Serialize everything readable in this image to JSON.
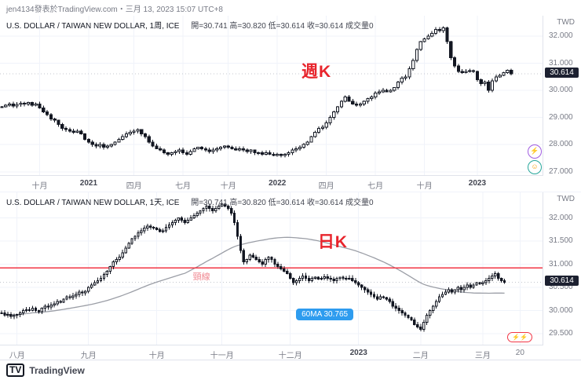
{
  "topbar": {
    "attribution": "jen4134發表於TradingView.com・三月 13, 2023 15:07 UTC+8"
  },
  "footer": {
    "logo_glyph": "TV",
    "brand": "TradingView"
  },
  "chart_data": [
    {
      "id": "weekly",
      "type": "candlestick",
      "title": "U.S. DOLLAR / TAIWAN NEW DOLLAR, 1周, ICE",
      "ohlc_summary": "開=30.741  高=30.820  低=30.614  收=30.614  成交量0",
      "annotation": "週K",
      "annotation_pos": {
        "x_frac": 0.555,
        "y_frac": 0.27
      },
      "currency": "TWD",
      "last_price": "30.614",
      "y_ticks": [
        "32.000",
        "31.000",
        "30.000",
        "29.000",
        "28.000",
        "27.000"
      ],
      "y_domain": [
        26.85,
        32.75
      ],
      "right_margin": 8,
      "wick": 0.07,
      "x_labels": [
        {
          "label": "十月",
          "i": 10
        },
        {
          "label": "2021",
          "i": 23,
          "b": true
        },
        {
          "label": "四月",
          "i": 35
        },
        {
          "label": "七月",
          "i": 48
        },
        {
          "label": "十月",
          "i": 60
        },
        {
          "label": "2022",
          "i": 73,
          "b": true
        },
        {
          "label": "四月",
          "i": 86
        },
        {
          "label": "七月",
          "i": 99
        },
        {
          "label": "十月",
          "i": 112
        },
        {
          "label": "2023",
          "i": 126,
          "b": true
        }
      ],
      "closes": [
        29.4,
        29.45,
        29.5,
        29.42,
        29.48,
        29.52,
        29.5,
        29.55,
        29.45,
        29.5,
        29.35,
        29.2,
        29.1,
        28.95,
        28.9,
        28.75,
        28.6,
        28.55,
        28.5,
        28.45,
        28.5,
        28.4,
        28.2,
        28.1,
        28.0,
        27.95,
        28.0,
        27.9,
        27.95,
        28.0,
        28.1,
        28.2,
        28.3,
        28.4,
        28.45,
        28.5,
        28.55,
        28.4,
        28.3,
        28.1,
        27.95,
        27.85,
        27.8,
        27.7,
        27.65,
        27.7,
        27.75,
        27.8,
        27.7,
        27.65,
        27.75,
        27.85,
        27.9,
        27.85,
        27.8,
        27.75,
        27.8,
        27.85,
        27.9,
        27.95,
        27.9,
        27.85,
        27.8,
        27.85,
        27.8,
        27.75,
        27.8,
        27.7,
        27.7,
        27.65,
        27.7,
        27.65,
        27.6,
        27.65,
        27.6,
        27.65,
        27.7,
        27.8,
        27.85,
        27.9,
        28.0,
        28.1,
        28.3,
        28.45,
        28.6,
        28.65,
        28.8,
        29.0,
        29.2,
        29.4,
        29.6,
        29.75,
        29.6,
        29.5,
        29.45,
        29.5,
        29.6,
        29.7,
        29.75,
        29.9,
        29.95,
        30.0,
        29.95,
        30.0,
        30.1,
        30.3,
        30.45,
        30.5,
        30.8,
        31.1,
        31.5,
        31.8,
        31.9,
        32.0,
        32.1,
        32.25,
        32.2,
        32.3,
        31.8,
        31.2,
        30.9,
        30.7,
        30.65,
        30.7,
        30.72,
        30.7,
        30.4,
        30.25,
        30.3,
        30.0,
        30.35,
        30.5,
        30.55,
        30.65,
        30.74,
        30.614
      ],
      "reactions": [
        "⚡",
        "☺"
      ]
    },
    {
      "id": "daily",
      "type": "candlestick",
      "title": "U.S. DOLLAR / TAIWAN NEW DOLLAR, 1天, ICE",
      "ohlc_summary": "開=30.741  高=30.820  低=30.614  收=30.614  成交量0",
      "annotation": "日K",
      "annotation_pos": {
        "x_frac": 0.585,
        "y_frac": 0.24
      },
      "currency": "TWD",
      "last_price": "30.614",
      "y_ticks": [
        "32.000",
        "31.500",
        "31.000",
        "30.500",
        "30.000",
        "29.500"
      ],
      "y_domain": [
        29.25,
        32.55
      ],
      "right_margin": 12,
      "wick": 0.05,
      "x_labels": [
        {
          "label": "八月",
          "i": 5
        },
        {
          "label": "九月",
          "i": 28
        },
        {
          "label": "十月",
          "i": 50
        },
        {
          "label": "十一月",
          "i": 71
        },
        {
          "label": "十二月",
          "i": 93
        },
        {
          "label": "2023",
          "i": 115,
          "b": true
        },
        {
          "label": "二月",
          "i": 135
        },
        {
          "label": "三月",
          "i": 155
        },
        {
          "label": "20",
          "i": 167
        }
      ],
      "closes": [
        29.95,
        29.9,
        29.92,
        29.88,
        29.9,
        29.92,
        29.95,
        30.0,
        30.02,
        30.0,
        30.05,
        30.0,
        29.98,
        30.05,
        30.1,
        30.08,
        30.12,
        30.15,
        30.2,
        30.18,
        30.25,
        30.3,
        30.28,
        30.32,
        30.35,
        30.4,
        30.38,
        30.42,
        30.5,
        30.55,
        30.6,
        30.65,
        30.7,
        30.78,
        30.85,
        30.95,
        31.05,
        31.1,
        31.15,
        31.25,
        31.35,
        31.45,
        31.55,
        31.6,
        31.68,
        31.72,
        31.78,
        31.82,
        31.8,
        31.78,
        31.75,
        31.7,
        31.72,
        31.8,
        31.85,
        31.9,
        31.95,
        32.0,
        31.95,
        31.9,
        31.95,
        32.0,
        32.05,
        32.1,
        32.15,
        32.2,
        32.25,
        32.2,
        32.15,
        32.2,
        32.25,
        32.3,
        32.25,
        32.2,
        32.1,
        31.9,
        31.6,
        31.3,
        31.05,
        31.1,
        31.2,
        31.15,
        31.1,
        31.05,
        31.0,
        31.1,
        31.15,
        31.1,
        31.0,
        30.95,
        30.9,
        30.85,
        30.8,
        30.7,
        30.6,
        30.65,
        30.7,
        30.75,
        30.7,
        30.65,
        30.7,
        30.72,
        30.68,
        30.7,
        30.73,
        30.7,
        30.68,
        30.65,
        30.7,
        30.72,
        30.7,
        30.68,
        30.7,
        30.65,
        30.6,
        30.55,
        30.5,
        30.45,
        30.4,
        30.35,
        30.3,
        30.25,
        30.3,
        30.28,
        30.25,
        30.2,
        30.1,
        30.05,
        30.0,
        29.95,
        29.9,
        29.85,
        29.8,
        29.7,
        29.65,
        29.6,
        29.75,
        29.9,
        30.0,
        30.1,
        30.2,
        30.3,
        30.35,
        30.4,
        30.45,
        30.4,
        30.45,
        30.5,
        30.45,
        30.5,
        30.55,
        30.5,
        30.55,
        30.6,
        30.58,
        30.6,
        30.65,
        30.7,
        30.75,
        30.8,
        30.7,
        30.65,
        30.614
      ],
      "ma": {
        "period": 60,
        "name": "60MA"
      },
      "ma_tooltip": {
        "label": "60MA 30.765",
        "x_frac": 0.545,
        "value": 30.05
      },
      "neckline": {
        "value": 30.92,
        "label": "頸線",
        "x_frac": 0.355
      },
      "reactions": [
        "⚡⚡"
      ]
    }
  ]
}
